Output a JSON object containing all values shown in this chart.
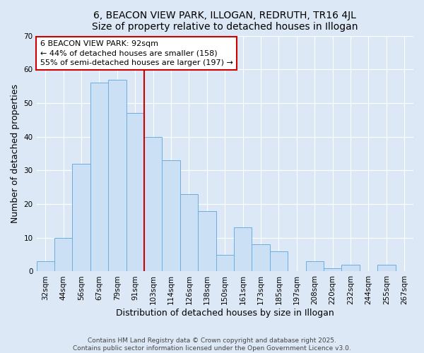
{
  "title": "6, BEACON VIEW PARK, ILLOGAN, REDRUTH, TR16 4JL",
  "subtitle": "Size of property relative to detached houses in Illogan",
  "xlabel": "Distribution of detached houses by size in Illogan",
  "ylabel": "Number of detached properties",
  "bar_labels": [
    "32sqm",
    "44sqm",
    "56sqm",
    "67sqm",
    "79sqm",
    "91sqm",
    "103sqm",
    "114sqm",
    "126sqm",
    "138sqm",
    "150sqm",
    "161sqm",
    "173sqm",
    "185sqm",
    "197sqm",
    "208sqm",
    "220sqm",
    "232sqm",
    "244sqm",
    "255sqm",
    "267sqm"
  ],
  "bar_values": [
    3,
    10,
    32,
    56,
    57,
    47,
    40,
    33,
    23,
    18,
    5,
    13,
    8,
    6,
    0,
    3,
    1,
    2,
    0,
    2,
    0
  ],
  "bar_color": "#cce0f5",
  "bar_edge_color": "#6aaee0",
  "vline_x_index": 5,
  "vline_color": "#cc0000",
  "annotation_title": "6 BEACON VIEW PARK: 92sqm",
  "annotation_line1": "← 44% of detached houses are smaller (158)",
  "annotation_line2": "55% of semi-detached houses are larger (197) →",
  "annotation_box_color": "white",
  "annotation_box_edge": "#cc0000",
  "ylim": [
    0,
    70
  ],
  "yticks": [
    0,
    10,
    20,
    30,
    40,
    50,
    60,
    70
  ],
  "footnote1": "Contains HM Land Registry data © Crown copyright and database right 2025.",
  "footnote2": "Contains public sector information licensed under the Open Government Licence v3.0.",
  "background_color": "#dce8f5",
  "title_fontsize": 10,
  "subtitle_fontsize": 9,
  "axis_label_fontsize": 9,
  "tick_fontsize": 7.5,
  "annotation_fontsize": 8,
  "footnote_fontsize": 6.5
}
